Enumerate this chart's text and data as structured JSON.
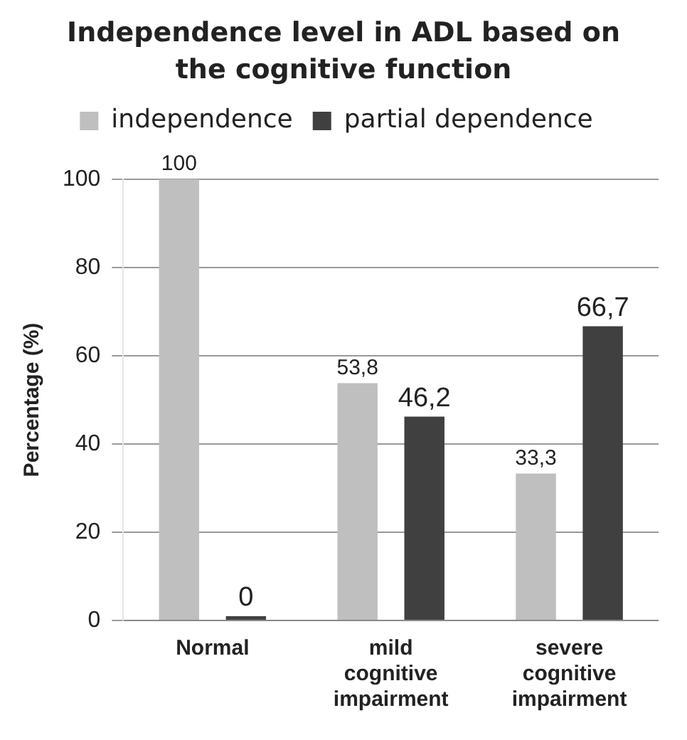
{
  "chart_data": {
    "type": "bar",
    "title": "Independence level in ADL based on the cognitive function",
    "ylabel": "Percentage (%)",
    "categories": [
      "Normal",
      "mild cognitive impairment",
      "severe cognitive impairment"
    ],
    "series": [
      {
        "name": "independence",
        "color": "#bfbfbf",
        "values": [
          100,
          53.8,
          33.3
        ],
        "value_labels": [
          "100",
          "53,8",
          "33,3"
        ]
      },
      {
        "name": "partial dependence",
        "color": "#404040",
        "values": [
          0,
          46.2,
          66.7
        ],
        "value_labels": [
          "0",
          "46,2",
          "66,7"
        ]
      }
    ],
    "ylim": [
      0,
      100
    ],
    "yticks": [
      0,
      20,
      40,
      60,
      80,
      100
    ],
    "grid": "y",
    "legend": "top"
  }
}
